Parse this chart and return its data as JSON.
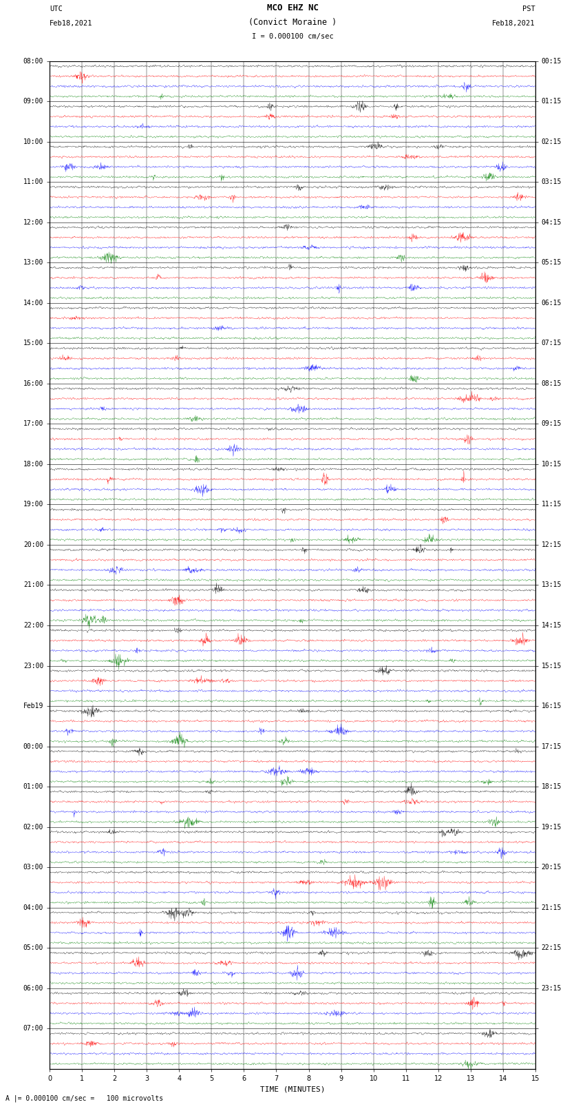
{
  "title_line1": "MCO EHZ NC",
  "title_line2": "(Convict Moraine )",
  "scale_label": "I = 0.000100 cm/sec",
  "footer_label": "A |= 0.000100 cm/sec =   100 microvolts",
  "left_header": "UTC",
  "left_date": "Feb18,2021",
  "right_header": "PST",
  "right_date": "Feb18,2021",
  "xlabel": "TIME (MINUTES)",
  "bg_color": "#ffffff",
  "trace_colors": [
    "black",
    "red",
    "blue",
    "green"
  ],
  "utc_labels": [
    "08:00",
    "",
    "",
    "",
    "09:00",
    "",
    "",
    "",
    "10:00",
    "",
    "",
    "",
    "11:00",
    "",
    "",
    "",
    "12:00",
    "",
    "",
    "",
    "13:00",
    "",
    "",
    "",
    "14:00",
    "",
    "",
    "",
    "15:00",
    "",
    "",
    "",
    "16:00",
    "",
    "",
    "",
    "17:00",
    "",
    "",
    "",
    "18:00",
    "",
    "",
    "",
    "19:00",
    "",
    "",
    "",
    "20:00",
    "",
    "",
    "",
    "21:00",
    "",
    "",
    "",
    "22:00",
    "",
    "",
    "",
    "23:00",
    "",
    "",
    "",
    "Feb19\n00:00",
    "",
    "",
    "",
    "00:00",
    "",
    "",
    "",
    "01:00",
    "",
    "",
    "",
    "02:00",
    "",
    "",
    "",
    "03:00",
    "",
    "",
    "",
    "04:00",
    "",
    "",
    "",
    "05:00",
    "",
    "",
    "",
    "06:00",
    "",
    "",
    "07:00"
  ],
  "utc_row_labels": [
    "08:00",
    "09:00",
    "10:00",
    "11:00",
    "12:00",
    "13:00",
    "14:00",
    "15:00",
    "16:00",
    "17:00",
    "18:00",
    "19:00",
    "20:00",
    "21:00",
    "22:00",
    "23:00",
    "Feb19",
    "00:00",
    "01:00",
    "02:00",
    "03:00",
    "04:00",
    "05:00",
    "06:00",
    "07:00"
  ],
  "pst_row_labels": [
    "00:15",
    "01:15",
    "02:15",
    "03:15",
    "04:15",
    "05:15",
    "06:15",
    "07:15",
    "08:15",
    "09:15",
    "10:15",
    "11:15",
    "12:15",
    "13:15",
    "14:15",
    "15:15",
    "16:15",
    "17:15",
    "18:15",
    "19:15",
    "20:15",
    "21:15",
    "22:15",
    "23:15",
    ""
  ],
  "n_hour_groups": 25,
  "n_traces_per_group": 4,
  "minutes": 15,
  "earthquake_hour_group": 32,
  "earthquake_minute": 13.3,
  "noise_seed": 12345
}
